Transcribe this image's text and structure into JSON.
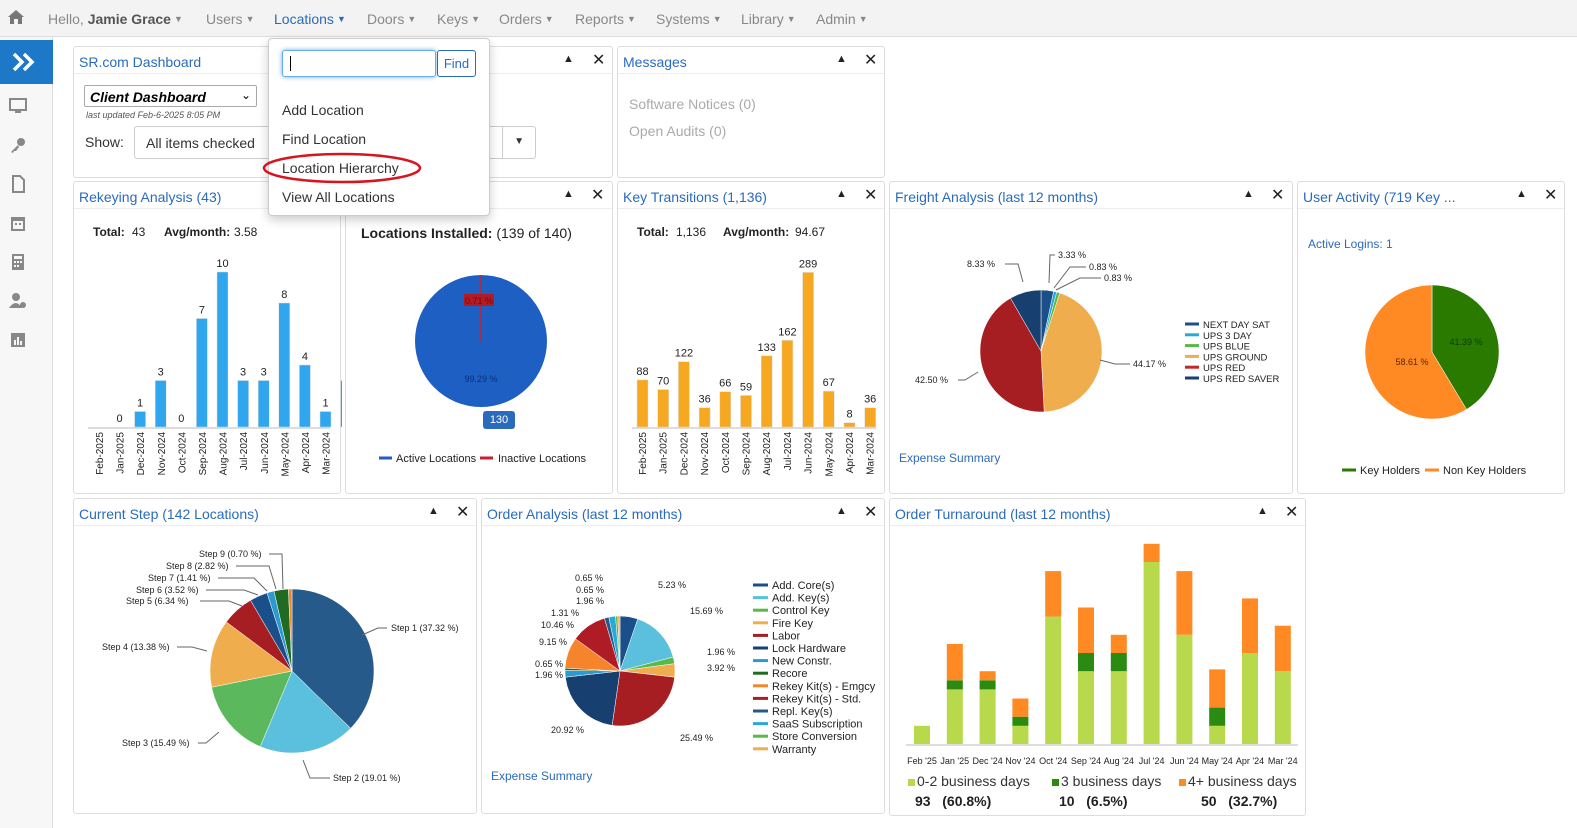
{
  "nav": {
    "greeting_prefix": "Hello, ",
    "user": "Jamie Grace",
    "items": [
      "Users",
      "Locations",
      "Doors",
      "Keys",
      "Orders",
      "Reports",
      "Systems",
      "Library",
      "Admin"
    ]
  },
  "dropdown": {
    "find": "Find",
    "items": [
      "Add Location",
      "Find Location",
      "Location Hierarchy",
      "View All Locations"
    ]
  },
  "dashboard": {
    "title": "SR.com Dashboard",
    "select": "Client Dashboard",
    "updated": "last updated Feb-6-2025 8:05 PM",
    "show_label": "Show:",
    "show_value": "All items checked"
  },
  "messages": {
    "title": "Messages",
    "items": [
      "Software Notices (0)",
      "Open Audits (0)"
    ]
  },
  "rekey": {
    "title": "Rekeying Analysis (43)",
    "total_label": "Total:",
    "total": "43",
    "avg_label": "Avg/month:",
    "avg": "3.58",
    "months": [
      "Feb-2025",
      "Jan-2025",
      "Dec-2024",
      "Nov-2024",
      "Oct-2024",
      "Sep-2024",
      "Aug-2024",
      "Jul-2024",
      "Jun-2024",
      "May-2024",
      "Apr-2024",
      "Mar-2024"
    ],
    "values": [
      0,
      1,
      3,
      0,
      7,
      10,
      3,
      3,
      8,
      4,
      1,
      3
    ]
  },
  "installed": {
    "title_bold": "Locations Installed:",
    "title_rest": "(139 of 140)",
    "slice_pct": "99.29 %",
    "small_pct": "0.71 %",
    "badge": "130",
    "legend": [
      "Active Locations",
      "Inactive Locations"
    ]
  },
  "transitions": {
    "title": "Key Transitions (1,136)",
    "total_label": "Total:",
    "total": "1,136",
    "avg_label": "Avg/month:",
    "avg": "94.67",
    "months": [
      "Feb-2025",
      "Jan-2025",
      "Dec-2024",
      "Nov-2024",
      "Oct-2024",
      "Sep-2024",
      "Aug-2024",
      "Jul-2024",
      "Jun-2024",
      "May-2024",
      "Apr-2024",
      "Mar-2024"
    ],
    "values": [
      88,
      70,
      122,
      36,
      66,
      59,
      133,
      162,
      289,
      67,
      8,
      36
    ]
  },
  "freight": {
    "title": "Freight Analysis (last 12 months)",
    "labels": [
      "8.33 %",
      "3.33 %",
      "0.83 %",
      "0.83 %",
      "44.17 %",
      "42.50 %"
    ],
    "legend": [
      "NEXT DAY SAT",
      "UPS 3 DAY",
      "UPS BLUE",
      "UPS GROUND",
      "UPS RED",
      "UPS RED SAVER"
    ],
    "link": "Expense Summary"
  },
  "activity": {
    "title": "User Activity (719 Key ...",
    "logins": "Active Logins: 1",
    "pct1": "41.39 %",
    "pct2": "58.61 %",
    "legend": [
      "Key Holders",
      "Non Key Holders"
    ]
  },
  "step": {
    "title": "Current Step (142 Locations)",
    "labels": [
      "Step 9 (0.70 %)",
      "Step 8 (2.82 %)",
      "Step 7 (1.41 %)",
      "Step 6 (3.52 %)",
      "Step 5 (6.34 %)",
      "Step 4 (13.38 %)",
      "Step 3 (15.49 %)",
      "Step 2 (19.01 %)",
      "Step 1 (37.32 %)"
    ]
  },
  "order": {
    "title": "Order Analysis (last 12 months)",
    "labels": [
      "0.65 %",
      "0.65 %",
      "1.96 %",
      "1.31 %",
      "10.46 %",
      "9.15 %",
      "0.65 %",
      "1.96 %",
      "20.92 %",
      "5.23 %",
      "15.69 %",
      "1.96 %",
      "3.92 %",
      "25.49 %"
    ],
    "legend": [
      "Add. Core(s)",
      "Add. Key(s)",
      "Control Key",
      "Fire Key",
      "Labor",
      "Lock Hardware",
      "New Constr.",
      "Recore",
      "Rekey Kit(s) - Emgcy",
      "Rekey Kit(s) - Std.",
      "Repl. Key(s)",
      "SaaS Subscription",
      "Store Conversion",
      "Warranty"
    ],
    "link": "Expense Summary"
  },
  "turnaround": {
    "title": "Order Turnaround (last 12 months)",
    "months": [
      "Feb '25",
      "Jan '25",
      "Dec '24",
      "Nov '24",
      "Oct '24",
      "Sep '24",
      "Aug '24",
      "Jul '24",
      "Jun '24",
      "May '24",
      "Apr '24",
      "Mar '24"
    ],
    "fast": [
      1,
      3,
      3,
      1,
      7,
      4,
      4,
      10,
      6,
      1,
      5,
      4
    ],
    "mid": [
      0,
      0.5,
      0.5,
      0.5,
      0,
      1,
      1,
      0,
      0,
      1,
      0,
      0
    ],
    "slow": [
      0,
      2,
      0.5,
      1,
      2.5,
      2.5,
      1,
      1,
      3.5,
      2.1,
      3,
      2.5
    ],
    "legend": [
      {
        "label": "0-2 business days",
        "count": "93",
        "pct": "(60.8%)"
      },
      {
        "label": "3 business days",
        "count": "10",
        "pct": "(6.5%)"
      },
      {
        "label": "4+ business days",
        "count": "50",
        "pct": "(32.7%)"
      }
    ]
  },
  "chart_data": [
    {
      "type": "bar",
      "title": "Rekeying Analysis (43)",
      "categories": [
        "Feb-2025",
        "Jan-2025",
        "Dec-2024",
        "Nov-2024",
        "Oct-2024",
        "Sep-2024",
        "Aug-2024",
        "Jul-2024",
        "Jun-2024",
        "May-2024",
        "Apr-2024",
        "Mar-2024"
      ],
      "values": [
        0,
        1,
        3,
        0,
        7,
        10,
        3,
        3,
        8,
        4,
        1,
        3
      ]
    },
    {
      "type": "pie",
      "title": "Locations Installed: (139 of 140)",
      "categories": [
        "Active Locations",
        "Inactive Locations"
      ],
      "values": [
        99.29,
        0.71
      ]
    },
    {
      "type": "bar",
      "title": "Key Transitions (1,136)",
      "categories": [
        "Feb-2025",
        "Jan-2025",
        "Dec-2024",
        "Nov-2024",
        "Oct-2024",
        "Sep-2024",
        "Aug-2024",
        "Jul-2024",
        "Jun-2024",
        "May-2024",
        "Apr-2024",
        "Mar-2024"
      ],
      "values": [
        88,
        70,
        122,
        36,
        66,
        59,
        133,
        162,
        289,
        67,
        8,
        36
      ]
    },
    {
      "type": "pie",
      "title": "Freight Analysis (last 12 months)",
      "values": [
        8.33,
        3.33,
        0.83,
        0.83,
        44.17,
        42.5
      ]
    },
    {
      "type": "pie",
      "title": "User Activity",
      "categories": [
        "Key Holders",
        "Non Key Holders"
      ],
      "values": [
        41.39,
        58.61
      ]
    },
    {
      "type": "pie",
      "title": "Current Step (142 Locations)",
      "categories": [
        "Step 1",
        "Step 2",
        "Step 3",
        "Step 4",
        "Step 5",
        "Step 6",
        "Step 7",
        "Step 8",
        "Step 9"
      ],
      "values": [
        37.32,
        19.01,
        15.49,
        13.38,
        6.34,
        3.52,
        1.41,
        2.82,
        0.7
      ]
    },
    {
      "type": "pie",
      "title": "Order Analysis (last 12 months)",
      "values": [
        5.23,
        15.69,
        1.96,
        3.92,
        25.49,
        20.92,
        1.96,
        0.65,
        9.15,
        10.46,
        1.31,
        1.96,
        0.65,
        0.65
      ]
    },
    {
      "type": "bar",
      "title": "Order Turnaround (last 12 months)",
      "categories": [
        "Feb '25",
        "Jan '25",
        "Dec '24",
        "Nov '24",
        "Oct '24",
        "Sep '24",
        "Aug '24",
        "Jul '24",
        "Jun '24",
        "May '24",
        "Apr '24",
        "Mar '24"
      ],
      "series": [
        {
          "name": "0-2 business days",
          "values": [
            1,
            3,
            3,
            1,
            7,
            4,
            4,
            10,
            6,
            1,
            5,
            4
          ]
        },
        {
          "name": "3 business days",
          "values": [
            0,
            0.5,
            0.5,
            0.5,
            0,
            1,
            1,
            0,
            0,
            1,
            0,
            0
          ]
        },
        {
          "name": "4+ business days",
          "values": [
            0,
            2,
            0.5,
            1,
            2.5,
            2.5,
            1,
            1,
            3.5,
            2.1,
            3,
            2.5
          ]
        }
      ]
    }
  ]
}
